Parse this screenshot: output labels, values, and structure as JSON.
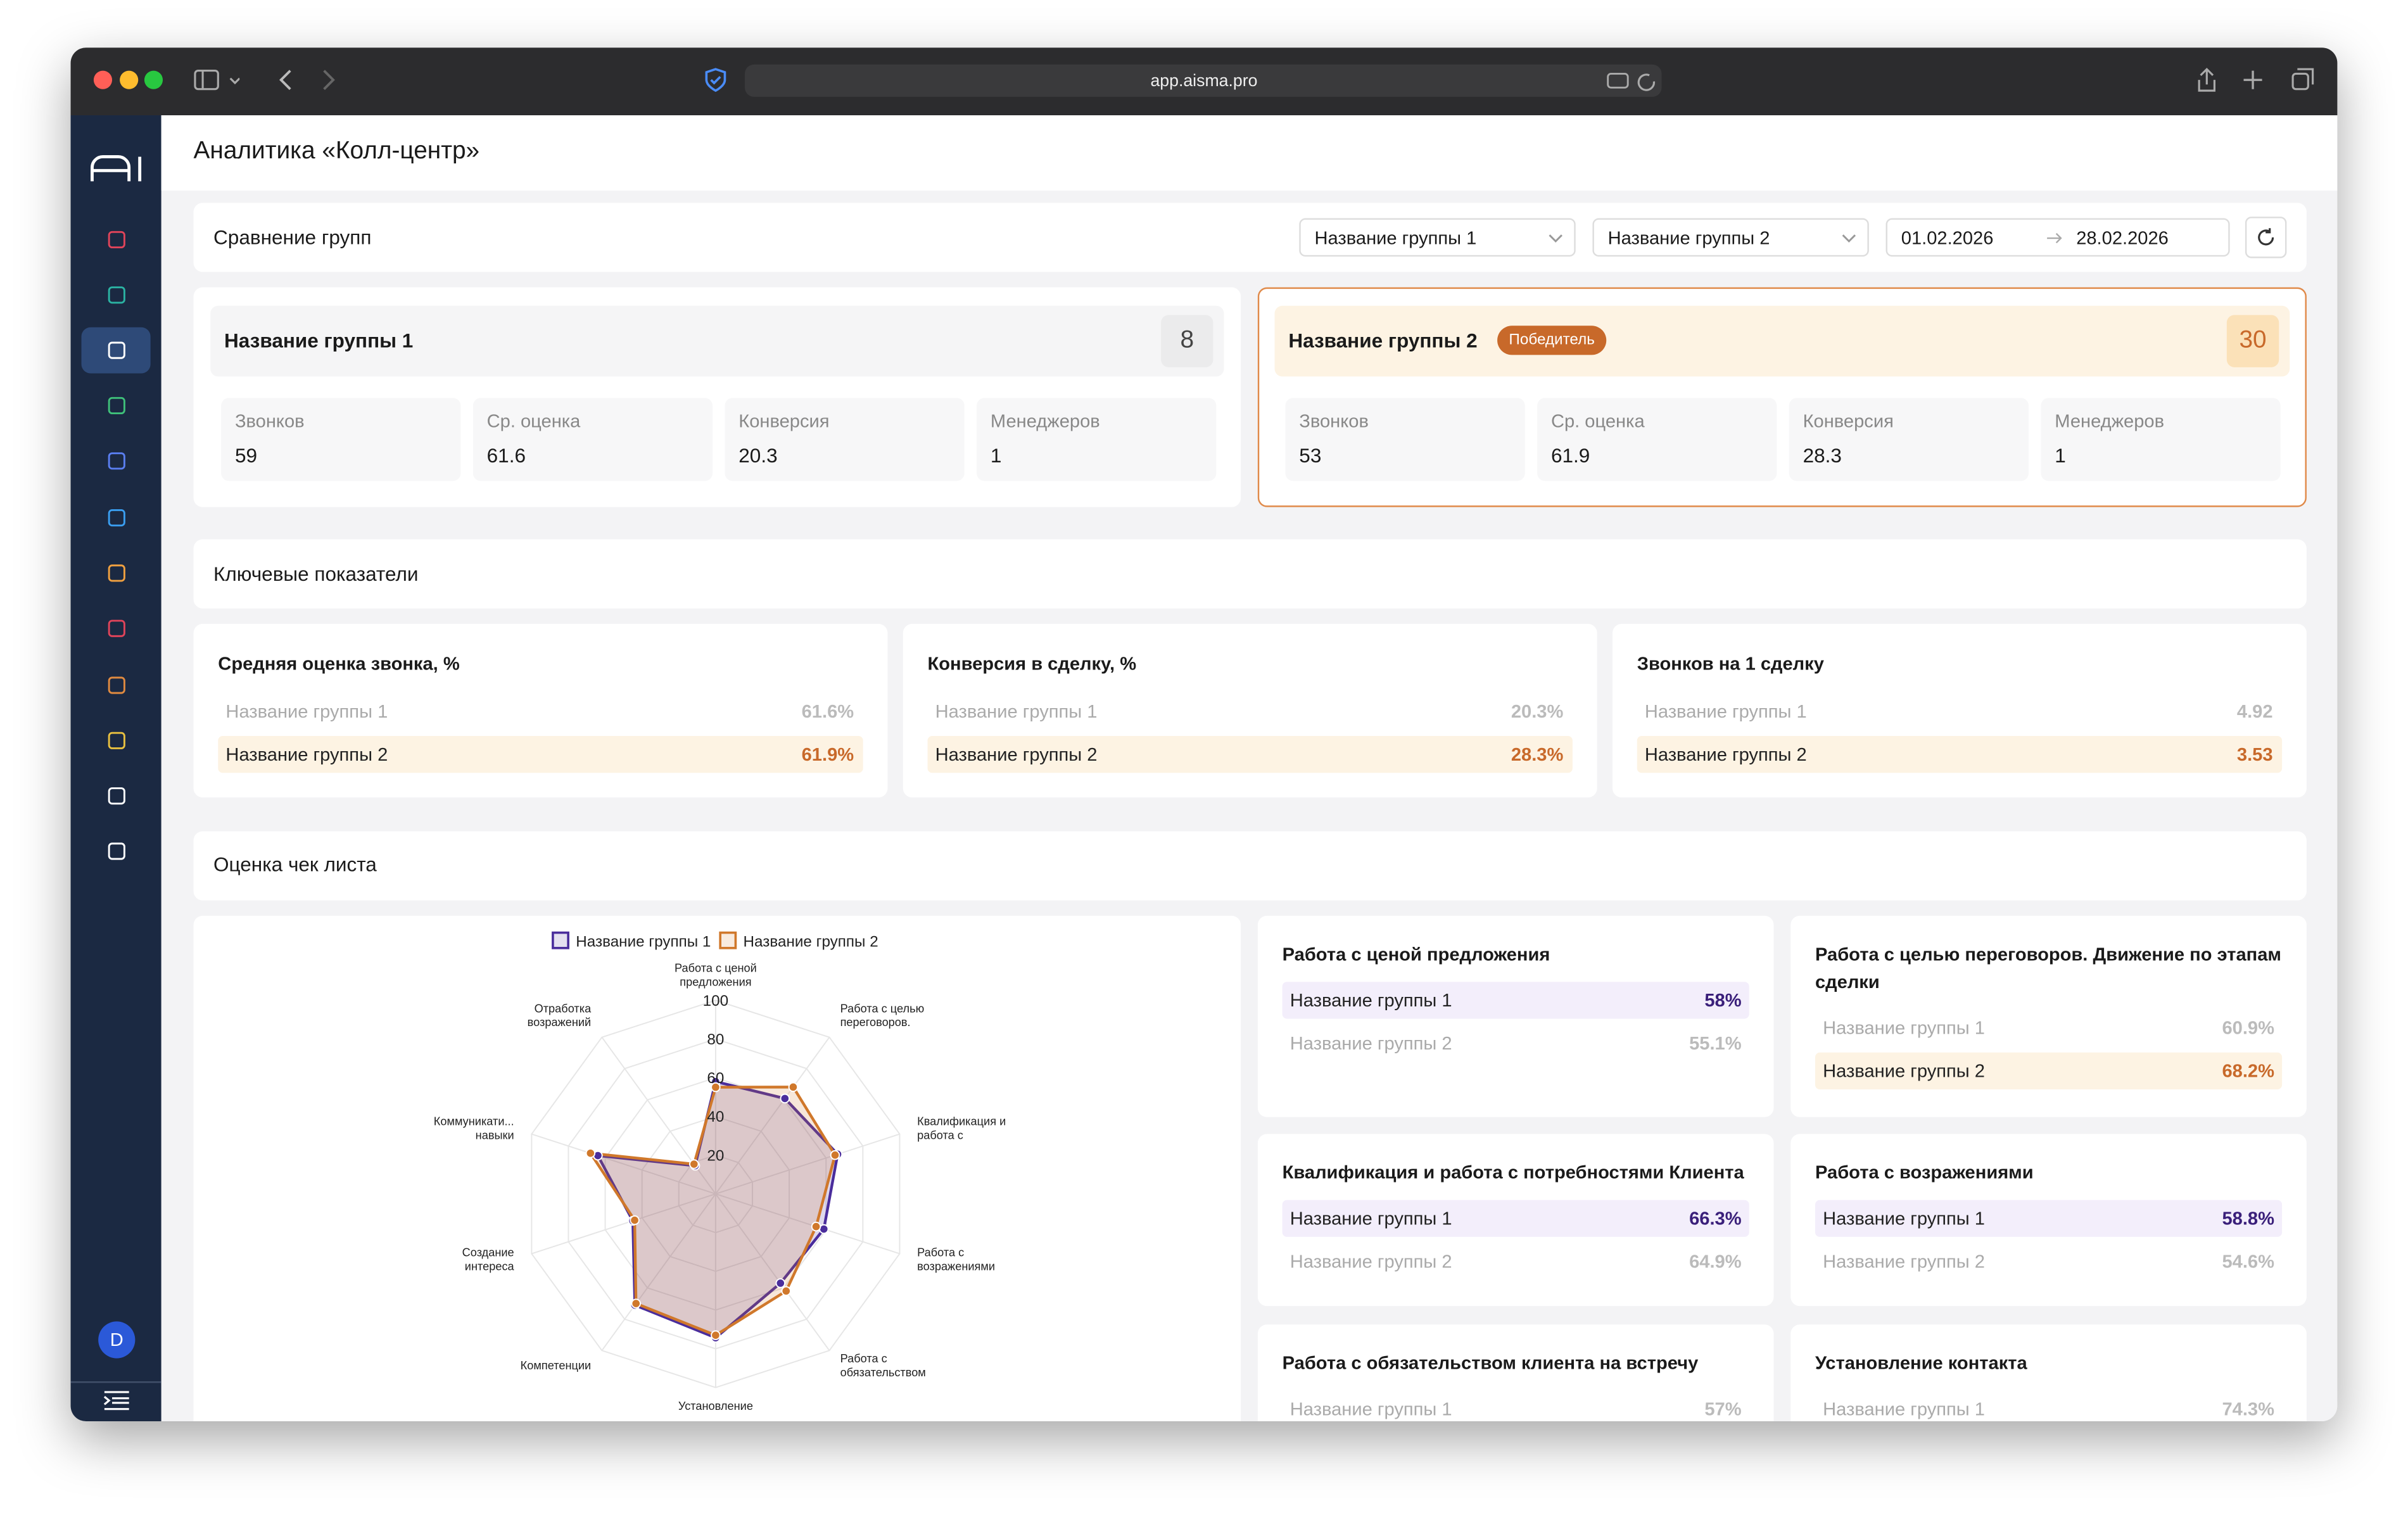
{
  "browser": {
    "url": "app.aisma.pro"
  },
  "sidebar": {
    "avatar": "D"
  },
  "header": {
    "title": "Аналитика «Колл-центр»"
  },
  "comparison": {
    "title": "Сравнение групп",
    "group_select_1": "Название группы 1",
    "group_select_2": "Название группы 2",
    "date_from": "01.02.2026",
    "date_to": "28.02.2026"
  },
  "groups": [
    {
      "name": "Название группы 1",
      "count": 8,
      "stats": [
        {
          "label": "Звонков",
          "value": 59
        },
        {
          "label": "Ср. оценка",
          "value": 61.6
        },
        {
          "label": "Конверсия",
          "value": 20.3
        },
        {
          "label": "Менеджеров",
          "value": 1
        }
      ]
    },
    {
      "name": "Название группы 2",
      "badge": "Победитель",
      "count": 30,
      "stats": [
        {
          "label": "Звонков",
          "value": 53
        },
        {
          "label": "Ср. оценка",
          "value": 61.9
        },
        {
          "label": "Конверсия",
          "value": 28.3
        },
        {
          "label": "Менеджеров",
          "value": 1
        }
      ]
    }
  ],
  "key_metrics": {
    "title": "Ключевые показатели",
    "cards": [
      {
        "title": "Средняя оценка звонка, %",
        "rows": [
          {
            "name": "Название группы 1",
            "value": "61.6%"
          },
          {
            "name": "Название группы 2",
            "value": "61.9%"
          }
        ]
      },
      {
        "title": "Конверсия в сделку, %",
        "rows": [
          {
            "name": "Название группы 1",
            "value": "20.3%"
          },
          {
            "name": "Название группы 2",
            "value": "28.3%"
          }
        ]
      },
      {
        "title": "Звонков на 1 сделку",
        "rows": [
          {
            "name": "Название группы 1",
            "value": "4.92"
          },
          {
            "name": "Название группы 2",
            "value": "3.53"
          }
        ]
      }
    ]
  },
  "checklist": {
    "title": "Оценка чек листа",
    "cards": [
      {
        "title": "Работа с ценой предложения",
        "rows": [
          {
            "name": "Название группы 1",
            "value": "58%"
          },
          {
            "name": "Название группы 2",
            "value": "55.1%"
          }
        ]
      },
      {
        "title": "Работа с целью переговоров. Движение по этапам сделки",
        "rows": [
          {
            "name": "Название группы 1",
            "value": "60.9%"
          },
          {
            "name": "Название группы 2",
            "value": "68.2%"
          }
        ]
      },
      {
        "title": "Квалификация и работа с потребностями Клиента",
        "rows": [
          {
            "name": "Название группы 1",
            "value": "66.3%"
          },
          {
            "name": "Название группы 2",
            "value": "64.9%"
          }
        ]
      },
      {
        "title": "Работа с возражениями",
        "rows": [
          {
            "name": "Название группы 1",
            "value": "58.8%"
          },
          {
            "name": "Название группы 2",
            "value": "54.6%"
          }
        ]
      },
      {
        "title": "Работа с обязательством клиента на встречу",
        "rows": [
          {
            "name": "Название группы 1",
            "value": "57%"
          }
        ]
      },
      {
        "title": "Установление контакта",
        "rows": [
          {
            "name": "Название группы 1",
            "value": "74.3%"
          }
        ]
      }
    ]
  },
  "chart_data": {
    "type": "radar",
    "categories": [
      "Работа с ценой предложения",
      "Работа с целью переговоров.",
      "Квалификация и работа с",
      "Работа с возражениями",
      "Работа с обязательством",
      "Установление",
      "Компетенции",
      "Создание интереса",
      "Коммуникати... навыки",
      "Отработка возражений"
    ],
    "series": [
      {
        "name": "Название группы 1",
        "color": "#4a2d9c",
        "values": [
          58,
          60.9,
          66.3,
          58.8,
          57,
          74.3,
          71,
          45,
          64,
          18
        ]
      },
      {
        "name": "Название группы 2",
        "color": "#d0782b",
        "values": [
          55.1,
          68.2,
          64.9,
          54.6,
          62,
          73,
          70,
          44,
          68,
          19
        ]
      }
    ],
    "ylim": [
      0,
      100
    ],
    "yticks": [
      20,
      40,
      60,
      80,
      100
    ],
    "grid": true
  }
}
